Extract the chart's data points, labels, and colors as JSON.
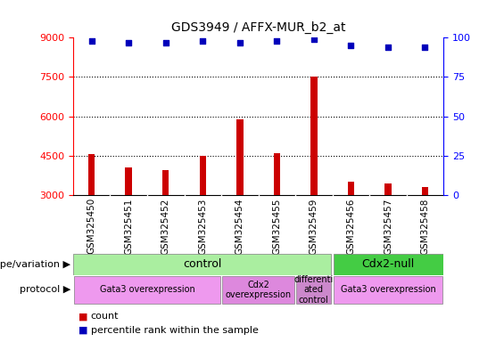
{
  "title": "GDS3949 / AFFX-MUR_b2_at",
  "samples": [
    "GSM325450",
    "GSM325451",
    "GSM325452",
    "GSM325453",
    "GSM325454",
    "GSM325455",
    "GSM325459",
    "GSM325456",
    "GSM325457",
    "GSM325458"
  ],
  "counts": [
    4550,
    4050,
    3950,
    4500,
    5900,
    4600,
    7500,
    3500,
    3450,
    3300
  ],
  "percentiles": [
    98,
    97,
    97,
    98,
    97,
    98,
    99,
    95,
    94,
    94
  ],
  "ylim": [
    3000,
    9000
  ],
  "yticks_left": [
    3000,
    4500,
    6000,
    7500,
    9000
  ],
  "yticks_right": [
    0,
    25,
    50,
    75,
    100
  ],
  "right_ylim": [
    0,
    100
  ],
  "bar_color": "#cc0000",
  "dot_color": "#0000bb",
  "plot_bg": "#ffffff",
  "ticklabel_bg": "#d8d8d8",
  "bar_width": 0.18,
  "genotype_control_n": 7,
  "genotype_cdx2_n": 3,
  "genotype_control_label": "control",
  "genotype_cdx2_label": "Cdx2-null",
  "genotype_control_color": "#aaeea0",
  "genotype_cdx2_color": "#44cc44",
  "protocol_group_ns": [
    4,
    2,
    1,
    3
  ],
  "protocol_group_labels": [
    "Gata3 overexpression",
    "Cdx2\noverexpression",
    "differenti\nated\ncontrol",
    "Gata3 overexpression"
  ],
  "protocol_group_colors": [
    "#ee99ee",
    "#dd88dd",
    "#cc88cc",
    "#ee99ee"
  ],
  "legend_count_color": "#cc0000",
  "legend_dot_color": "#0000bb"
}
